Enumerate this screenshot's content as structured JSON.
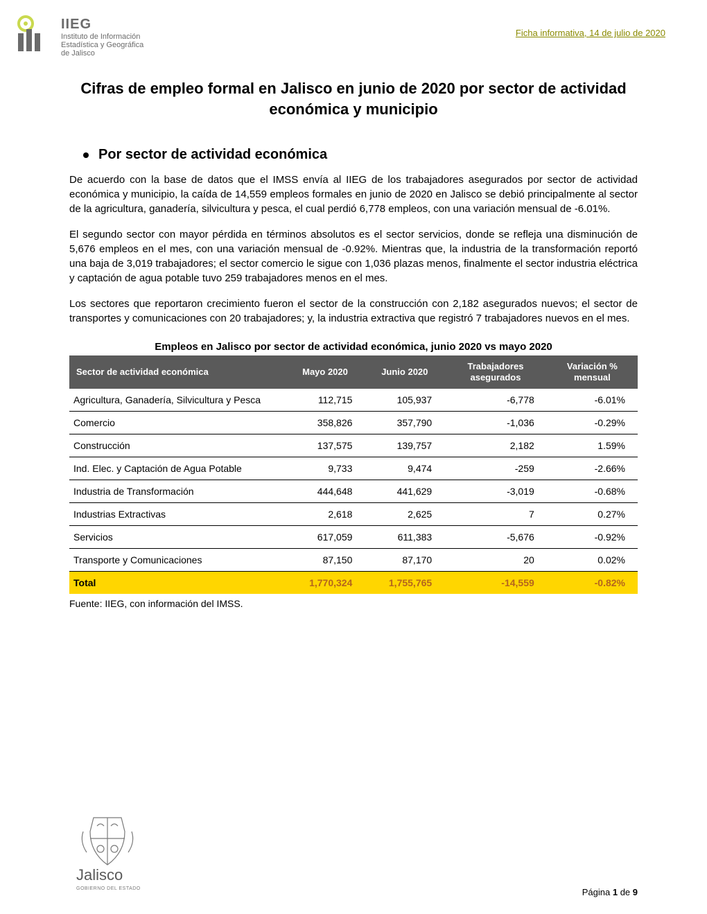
{
  "header": {
    "logo_acronym": "IIEG",
    "logo_line2": "Instituto de Información",
    "logo_line3": "Estadística y Geográfica",
    "logo_line4": "de Jalisco",
    "ficha": "Ficha informativa, 14 de julio de 2020",
    "logo_colors": {
      "ring": "#c9d94e",
      "bars": "#6b6b6b"
    }
  },
  "title": "Cifras de empleo formal en Jalisco en junio de 2020 por sector de actividad económica y municipio",
  "section_heading": "Por sector de actividad económica",
  "paragraphs": [
    "De acuerdo con la base de datos que el IMSS envía al IIEG de los trabajadores asegurados por sector de actividad económica y municipio, la caída de 14,559 empleos formales en junio de 2020 en Jalisco se debió principalmente al sector de la agricultura, ganadería, silvicultura y pesca, el cual perdió 6,778 empleos, con una variación mensual de -6.01%.",
    "El segundo sector con mayor pérdida en términos absolutos es el sector servicios, donde se refleja una disminución de 5,676 empleos en el mes, con una variación mensual de -0.92%. Mientras que, la industria de la transformación reportó una baja de 3,019 trabajadores; el sector comercio le sigue con 1,036 plazas menos, finalmente el sector industria eléctrica y captación de agua potable tuvo 259 trabajadores menos en el mes.",
    "Los sectores que reportaron crecimiento fueron el sector de la construcción con 2,182 asegurados nuevos; el sector de transportes y comunicaciones con 20 trabajadores; y, la industria extractiva que registró 7 trabajadores nuevos en el mes."
  ],
  "table": {
    "title": "Empleos en Jalisco por sector de actividad económica, junio 2020 vs mayo 2020",
    "header_bg": "#5a5a5a",
    "header_color": "#ffffff",
    "total_bg": "#ffd600",
    "total_color": "#b5651d",
    "columns": [
      "Sector de actividad económica",
      "Mayo 2020",
      "Junio 2020",
      "Trabajadores asegurados",
      "Variación % mensual"
    ],
    "col_widths": [
      "38%",
      "14%",
      "14%",
      "18%",
      "16%"
    ],
    "rows": [
      {
        "sector": "Agricultura, Ganadería, Silvicultura y Pesca",
        "mayo": "112,715",
        "junio": "105,937",
        "trab": "-6,778",
        "var": "-6.01%"
      },
      {
        "sector": "Comercio",
        "mayo": "358,826",
        "junio": "357,790",
        "trab": "-1,036",
        "var": "-0.29%"
      },
      {
        "sector": "Construcción",
        "mayo": "137,575",
        "junio": "139,757",
        "trab": "2,182",
        "var": "1.59%"
      },
      {
        "sector": "Ind. Elec. y Captación de Agua Potable",
        "mayo": "9,733",
        "junio": "9,474",
        "trab": "-259",
        "var": "-2.66%"
      },
      {
        "sector": "Industria de Transformación",
        "mayo": "444,648",
        "junio": "441,629",
        "trab": "-3,019",
        "var": "-0.68%"
      },
      {
        "sector": "Industrias Extractivas",
        "mayo": "2,618",
        "junio": "2,625",
        "trab": "7",
        "var": "0.27%"
      },
      {
        "sector": "Servicios",
        "mayo": "617,059",
        "junio": "611,383",
        "trab": "-5,676",
        "var": "-0.92%"
      },
      {
        "sector": "Transporte y Comunicaciones",
        "mayo": "87,150",
        "junio": "87,170",
        "trab": "20",
        "var": "0.02%"
      }
    ],
    "total": {
      "sector": "Total",
      "mayo": "1,770,324",
      "junio": "1,755,765",
      "trab": "-14,559",
      "var": "-0.82%"
    }
  },
  "source": "Fuente: IIEG, con información del IMSS.",
  "footer": {
    "state_logo_text_top": "Jalisco",
    "state_logo_text_bottom": "GOBIERNO DEL ESTADO",
    "page_label": "Página 1 de 9",
    "shield_color": "#7a7a7a",
    "text_color": "#5a5a5a"
  }
}
